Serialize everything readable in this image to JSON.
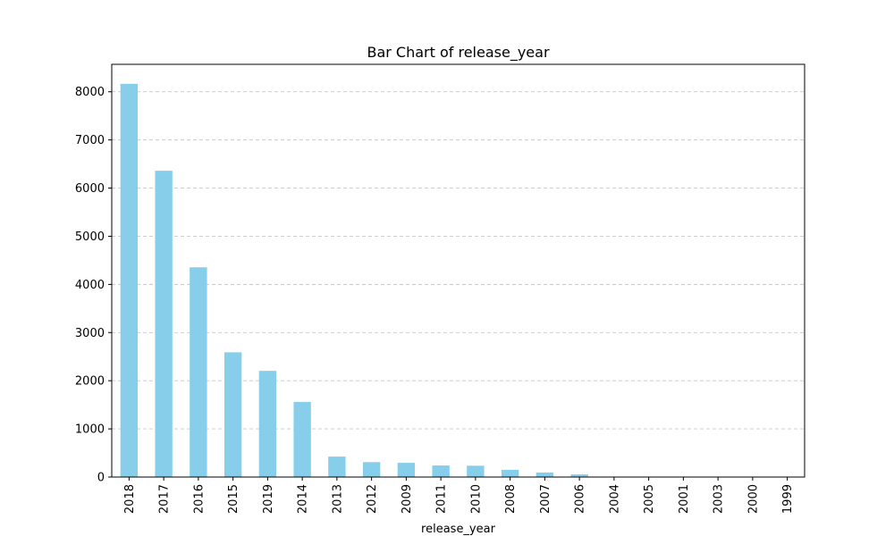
{
  "chart_data": {
    "type": "bar",
    "title": "Bar Chart of release_year",
    "xlabel": "release_year",
    "ylabel": "",
    "categories": [
      "2018",
      "2017",
      "2016",
      "2015",
      "2019",
      "2014",
      "2013",
      "2012",
      "2009",
      "2011",
      "2010",
      "2008",
      "2007",
      "2006",
      "2004",
      "2005",
      "2001",
      "2003",
      "2000",
      "1999"
    ],
    "values": [
      8165,
      6360,
      4355,
      2590,
      2205,
      1560,
      425,
      310,
      295,
      240,
      235,
      150,
      95,
      55,
      6,
      5,
      3,
      3,
      2,
      1
    ],
    "ylim": [
      0,
      8570
    ],
    "yticks": [
      0,
      1000,
      2000,
      3000,
      4000,
      5000,
      6000,
      7000,
      8000
    ],
    "grid": "y-dashed",
    "colors": {
      "bar": "#87CEEB",
      "grid": "#c8c8c8",
      "axis": "#000000"
    }
  }
}
